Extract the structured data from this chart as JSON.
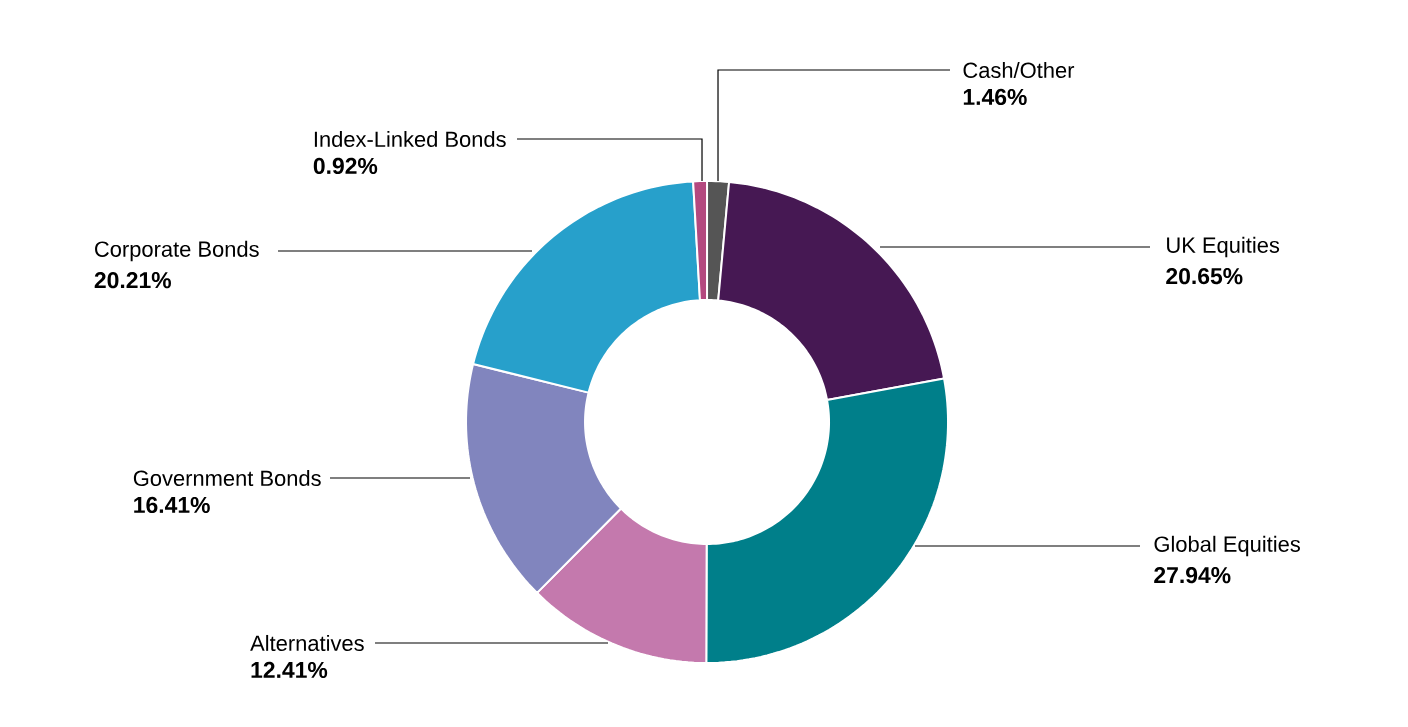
{
  "chart_data": {
    "type": "donut",
    "categories": [
      "Cash/Other",
      "UK Equities",
      "Global Equities",
      "Alternatives",
      "Government Bonds",
      "Corporate Bonds",
      "Index-Linked Bonds"
    ],
    "values": [
      1.46,
      20.65,
      27.94,
      12.41,
      16.41,
      20.21,
      0.92
    ],
    "value_labels": [
      "1.46%",
      "20.65%",
      "27.94%",
      "12.41%",
      "16.41%",
      "20.21%",
      "0.92%"
    ],
    "colors": [
      "#555555",
      "#461853",
      "#007f8a",
      "#c479ad",
      "#8185be",
      "#27a0cb",
      "#b4497f"
    ]
  }
}
